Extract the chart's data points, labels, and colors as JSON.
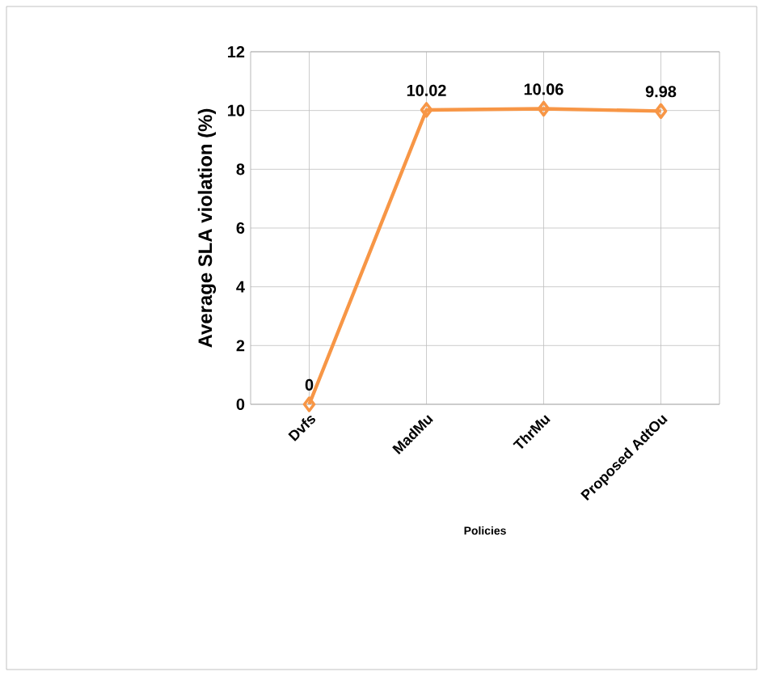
{
  "chart_data": {
    "type": "line",
    "categories": [
      "Dvfs",
      "MadMu",
      "ThrMu",
      "Proposed AdtOu"
    ],
    "values": [
      0,
      10.02,
      10.06,
      9.98
    ],
    "color": "#f79646",
    "marker": "diamond",
    "line_style": "solid",
    "ylim": [
      0,
      12
    ],
    "yticks": [
      0,
      2,
      4,
      6,
      8,
      10,
      12
    ],
    "grid": true,
    "data_labels": true,
    "ylabel": "Average SLA violation  (%)",
    "xlabel": "Policies"
  }
}
